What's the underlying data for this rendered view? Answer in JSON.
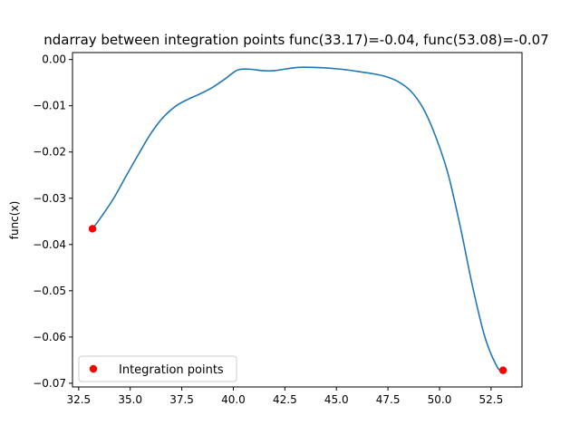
{
  "chart_data": {
    "type": "line",
    "title": "ndarray between integration points func(33.17)=-0.04, func(53.08)=-0.07",
    "xlabel": "",
    "ylabel": "func(x)",
    "xlim": [
      32.2,
      54.0
    ],
    "ylim": [
      -0.0708,
      0.0015
    ],
    "x_ticks": [
      32.5,
      35.0,
      37.5,
      40.0,
      42.5,
      45.0,
      47.5,
      50.0,
      52.5
    ],
    "x_tick_labels": [
      "32.5",
      "35.0",
      "37.5",
      "40.0",
      "42.5",
      "45.0",
      "47.5",
      "50.0",
      "52.5"
    ],
    "y_ticks": [
      0.0,
      -0.01,
      -0.02,
      -0.03,
      -0.04,
      -0.05,
      -0.06,
      -0.07
    ],
    "y_tick_labels": [
      "0.00",
      "−0.01",
      "−0.02",
      "−0.03",
      "−0.04",
      "−0.05",
      "−0.06",
      "−0.07"
    ],
    "grid": false,
    "legend": {
      "placement": "lower-left",
      "entries": [
        "Integration points"
      ]
    },
    "series": [
      {
        "kind": "line",
        "color": "#1f77b4",
        "x": [
          33.17,
          33.6,
          34.2,
          34.8,
          35.4,
          36.0,
          36.6,
          37.2,
          37.8,
          38.4,
          39.0,
          39.6,
          40.2,
          40.8,
          41.4,
          42.0,
          42.6,
          43.2,
          43.8,
          44.4,
          45.0,
          45.6,
          46.2,
          46.8,
          47.4,
          48.0,
          48.6,
          49.2,
          49.8,
          50.4,
          51.0,
          51.6,
          52.2,
          52.8,
          53.08
        ],
        "y": [
          -0.0366,
          -0.034,
          -0.03,
          -0.0252,
          -0.0205,
          -0.016,
          -0.0125,
          -0.0101,
          -0.0086,
          -0.0074,
          -0.006,
          -0.0042,
          -0.0023,
          -0.0021,
          -0.0024,
          -0.0024,
          -0.002,
          -0.0017,
          -0.0017,
          -0.0018,
          -0.002,
          -0.0023,
          -0.0027,
          -0.0031,
          -0.0037,
          -0.0048,
          -0.0068,
          -0.0105,
          -0.0165,
          -0.0245,
          -0.036,
          -0.049,
          -0.06,
          -0.0665,
          -0.0672
        ]
      },
      {
        "kind": "scatter",
        "name": "Integration points",
        "color": "#ff0000",
        "x": [
          33.17,
          53.08
        ],
        "y": [
          -0.0366,
          -0.0672
        ]
      }
    ]
  }
}
